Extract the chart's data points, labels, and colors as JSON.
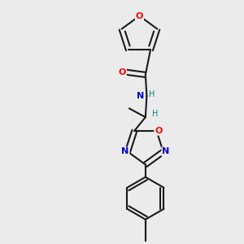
{
  "bg_color": "#ebebeb",
  "bond_color": "#1a1a1a",
  "oxygen_color": "#ff0000",
  "nitrogen_color": "#0000cc",
  "hydrogen_color": "#008080",
  "lw": 1.5,
  "figsize": [
    3.0,
    3.0
  ],
  "dpi": 100,
  "xlim": [
    0.05,
    0.75
  ],
  "ylim": [
    0.02,
    0.98
  ]
}
